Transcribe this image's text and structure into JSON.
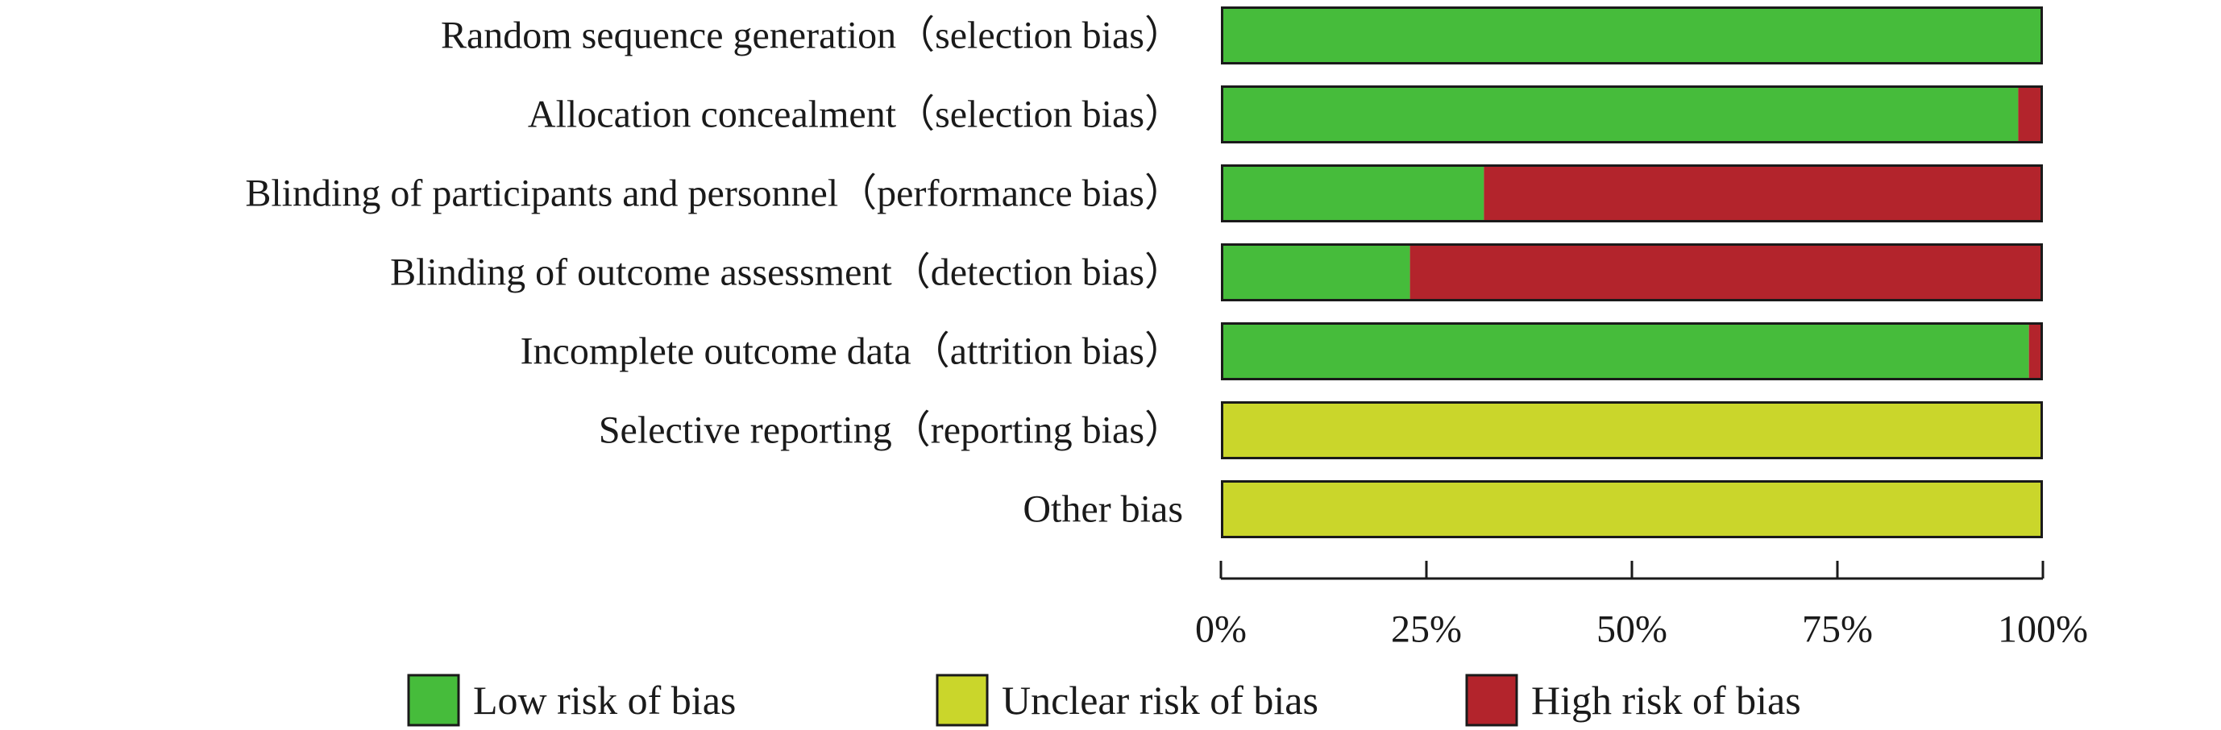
{
  "chart_data": {
    "type": "bar",
    "orientation": "horizontal",
    "stacked": true,
    "categories": [
      "Random sequence generation（selection bias）",
      "Allocation concealment（selection bias）",
      "Blinding of participants and personnel（performance bias）",
      "Blinding of outcome assessment（detection bias）",
      "Incomplete outcome data（attrition bias）",
      "Selective reporting（reporting bias）",
      "Other bias"
    ],
    "series": [
      {
        "name": "Low risk of bias",
        "color": "#46BC3B",
        "values": [
          100,
          97,
          32,
          23,
          98.3,
          0,
          0
        ]
      },
      {
        "name": "Unclear risk of bias",
        "color": "#CAD62B",
        "values": [
          0,
          0,
          0,
          0,
          0,
          100,
          100
        ]
      },
      {
        "name": "High risk of bias",
        "color": "#B3242C",
        "values": [
          0,
          3,
          68,
          77,
          1.7,
          0,
          0
        ]
      }
    ],
    "xlim": [
      0,
      100
    ],
    "xticks": [
      0,
      25,
      50,
      75,
      100
    ],
    "xtick_labels": [
      "0%",
      "25%",
      "50%",
      "75%",
      "100%"
    ],
    "legend_position": "bottom",
    "grid": false
  }
}
